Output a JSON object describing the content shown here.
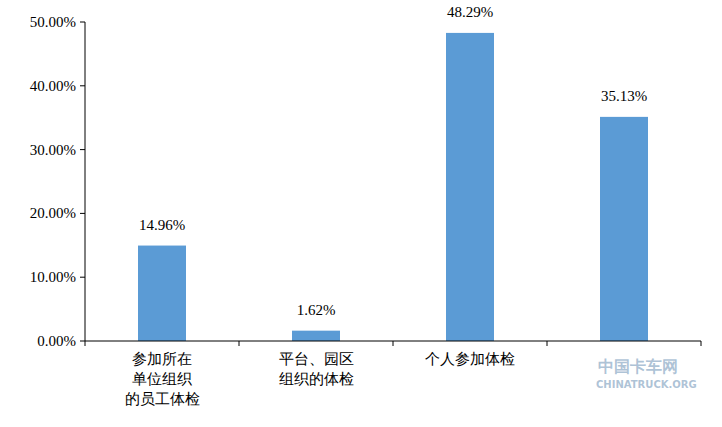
{
  "chart_data": {
    "type": "bar",
    "categories": [
      "参加所在\n单位组织\n的员工体检",
      "平台、园区\n组织的体检",
      "个人参加体检",
      null
    ],
    "values": [
      14.96,
      1.62,
      48.29,
      35.13
    ],
    "value_labels": [
      "14.96%",
      "1.62%",
      "48.29%",
      "35.13%"
    ],
    "data_labels": true,
    "color": "#5b9bd5",
    "ylim": [
      0,
      50
    ],
    "yticks": [
      {
        "value": 0,
        "label": "0.00%"
      },
      {
        "value": 10,
        "label": "10.00%"
      },
      {
        "value": 20,
        "label": "20.00%"
      },
      {
        "value": 30,
        "label": "30.00%"
      },
      {
        "value": 40,
        "label": "40.00%"
      },
      {
        "value": 50,
        "label": "50.00%"
      }
    ],
    "grid": false,
    "annotations": [
      "中国卡车网",
      "CHINATRUCK.ORG"
    ]
  }
}
